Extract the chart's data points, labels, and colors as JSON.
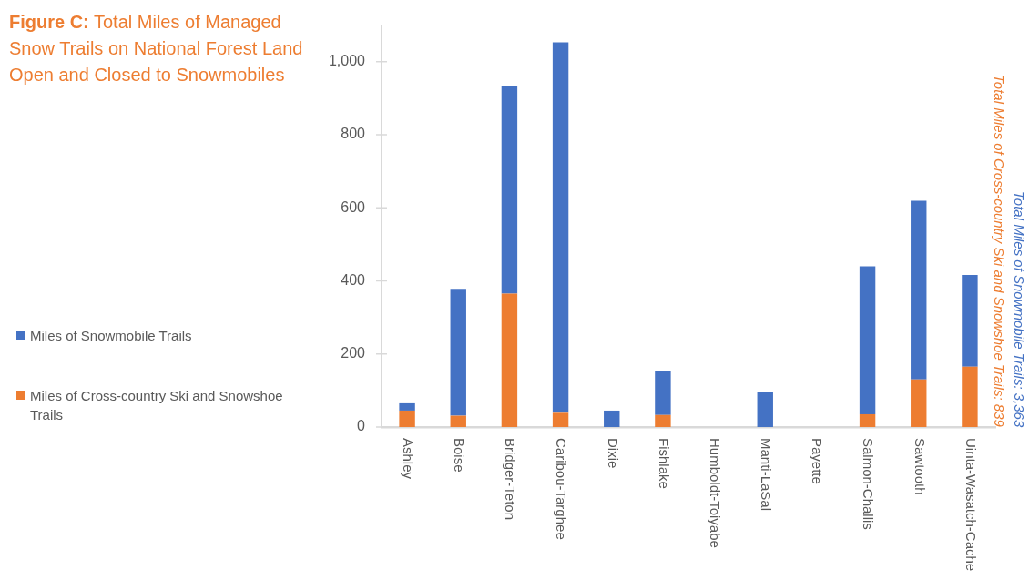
{
  "chart_data": {
    "type": "bar",
    "title": "Figure C: Total Miles of Managed Snow Trails on National Forest Land Open and Closed to Snowmobiles",
    "categories": [
      "Ashley",
      "Boise",
      "Bridger-Teton",
      "Caribou-Targhee",
      "Dixie",
      "Fishlake",
      "Humboldt-Toiyabe",
      "Manti-LaSal",
      "Payette",
      "Salmon-Challis",
      "Sawtooth",
      "Uinta-Wasatch-Cache"
    ],
    "series": [
      {
        "name": "Miles of Cross-country Ski and Snowshoe Trails",
        "color": "#ed7d31",
        "values": [
          45,
          31,
          365,
          39,
          0,
          33,
          0,
          0,
          0,
          35,
          130,
          165
        ]
      },
      {
        "name": "Miles of Snowmobile Trails",
        "color": "#4472c4",
        "values": [
          20,
          347,
          569,
          1014,
          45,
          121,
          0,
          96,
          0,
          405,
          489,
          251
        ]
      }
    ],
    "stacked": true,
    "ylim": [
      0,
      1100
    ],
    "yticks": [
      0,
      200,
      400,
      600,
      800,
      {
        "value": 1000,
        "label": "1,000"
      }
    ],
    "legend": "left",
    "annotations": [
      "Total Miles of Cross-country Ski and Snowshoe Trails: 839",
      "Total Miles of Snowmobile Trails: 3,363"
    ]
  }
}
